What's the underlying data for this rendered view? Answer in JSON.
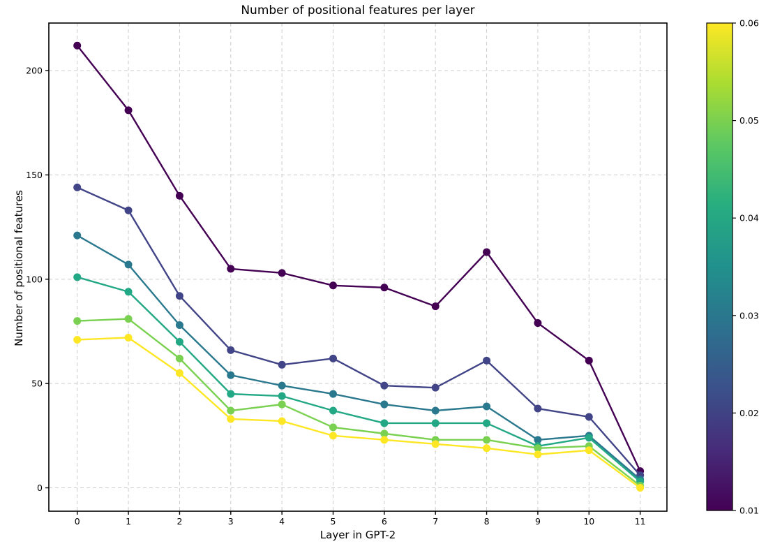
{
  "chart_data": {
    "type": "line",
    "title": "Number of positional features per layer",
    "xlabel": "Layer in GPT-2",
    "ylabel": "Number of positional features",
    "x": [
      0,
      1,
      2,
      3,
      4,
      5,
      6,
      7,
      8,
      9,
      10,
      11
    ],
    "x_tick_labels": [
      "0",
      "1",
      "2",
      "3",
      "4",
      "5",
      "6",
      "7",
      "8",
      "9",
      "10",
      "11"
    ],
    "y_ticks": [
      0,
      50,
      100,
      150,
      200
    ],
    "y_tick_labels": [
      "0",
      "50",
      "100",
      "150",
      "200"
    ],
    "xlim": [
      -0.555,
      11.523
    ],
    "ylim": [
      -11.2,
      222.8
    ],
    "grid": true,
    "grid_style": "dashed",
    "grid_color": "#cccccc",
    "spine_color": "#000000",
    "marker": "o",
    "series": [
      {
        "name": "0.01",
        "threshold": 0.01,
        "color": "#440154",
        "values": [
          212,
          181,
          140,
          105,
          103,
          97,
          96,
          87,
          113,
          79,
          61,
          8
        ]
      },
      {
        "name": "0.02",
        "threshold": 0.02,
        "color": "#414487",
        "values": [
          144,
          133,
          92,
          66,
          59,
          62,
          49,
          48,
          61,
          38,
          34,
          6
        ]
      },
      {
        "name": "0.03",
        "threshold": 0.03,
        "color": "#2a788e",
        "values": [
          121,
          107,
          78,
          54,
          49,
          45,
          40,
          37,
          39,
          23,
          25,
          4
        ]
      },
      {
        "name": "0.04",
        "threshold": 0.04,
        "color": "#22a884",
        "values": [
          101,
          94,
          70,
          45,
          44,
          37,
          31,
          31,
          31,
          20,
          24,
          3
        ]
      },
      {
        "name": "0.05",
        "threshold": 0.05,
        "color": "#7ad151",
        "values": [
          80,
          81,
          62,
          37,
          40,
          29,
          26,
          23,
          23,
          19,
          20,
          1
        ]
      },
      {
        "name": "0.06",
        "threshold": 0.06,
        "color": "#fde725",
        "values": [
          71,
          72,
          55,
          33,
          32,
          25,
          23,
          21,
          19,
          16,
          18,
          0
        ]
      }
    ],
    "legend_position": "none",
    "colorbar": {
      "colormap": "viridis",
      "min": 0.01,
      "max": 0.06,
      "tick_labels": [
        "0.01",
        "0.02",
        "0.03",
        "0.04",
        "0.05",
        "0.06"
      ],
      "gradient_stops": [
        "#440154",
        "#472c7a",
        "#3b518b",
        "#2c718e",
        "#21918c",
        "#27ad81",
        "#5cc863",
        "#aadc32",
        "#fde725"
      ]
    }
  }
}
